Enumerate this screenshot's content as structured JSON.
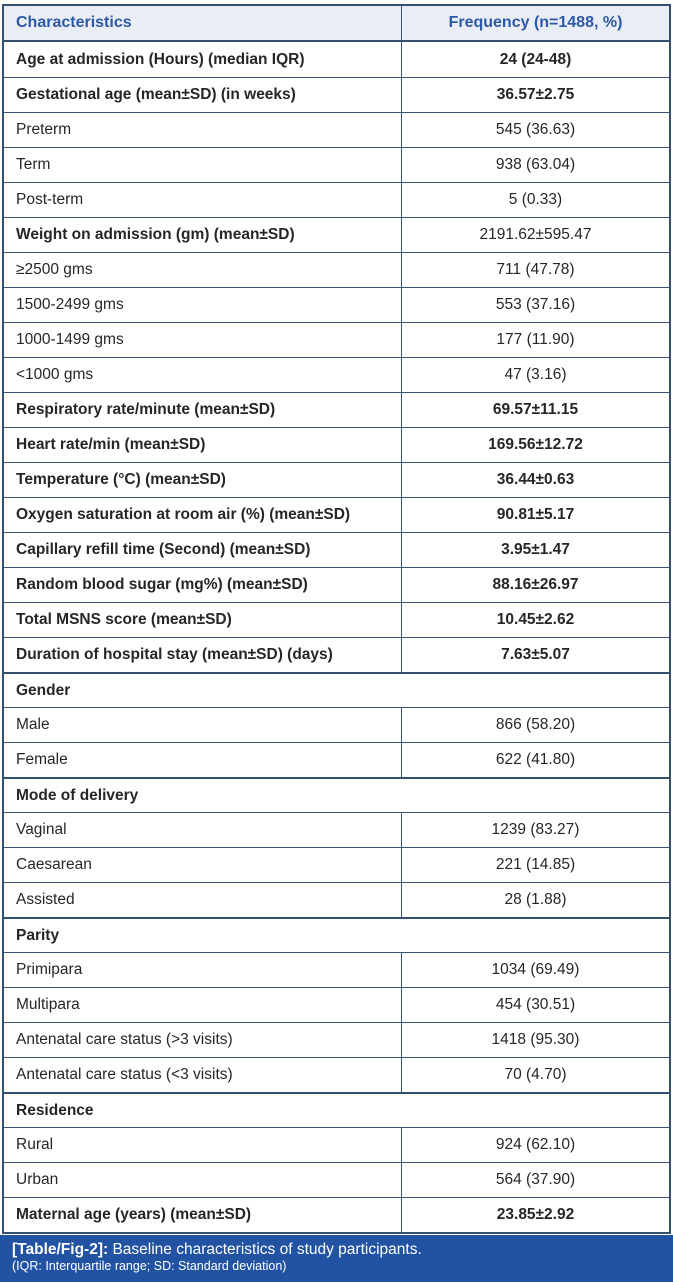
{
  "colors": {
    "border": "#35506f",
    "header_bg": "#e9edf4",
    "header_text": "#2e59a7",
    "caption_bg": "#2253a3",
    "caption_text": "#ffffff",
    "body_text": "#262626"
  },
  "table": {
    "columns": [
      "Characteristics",
      "Frequency (n=1488, %)"
    ],
    "rows": [
      {
        "label": "Age at admission (Hours) (median IQR)",
        "value": "24 (24-48)",
        "lb": true,
        "vb": true
      },
      {
        "label": "Gestational age (mean±SD) (in weeks)",
        "value": "36.57±2.75",
        "lb": true,
        "vb": true
      },
      {
        "label": "Preterm",
        "value": "545 (36.63)",
        "lb": false,
        "vb": false
      },
      {
        "label": "Term",
        "value": "938 (63.04)",
        "lb": false,
        "vb": false
      },
      {
        "label": "Post-term",
        "value": "5 (0.33)",
        "lb": false,
        "vb": false
      },
      {
        "label": "Weight on admission (gm) (mean±SD)",
        "value": "2191.62±595.47",
        "lb": true,
        "vb": false
      },
      {
        "label": "≥2500 gms",
        "value": "711 (47.78)",
        "lb": false,
        "vb": false
      },
      {
        "label": "1500-2499 gms",
        "value": "553 (37.16)",
        "lb": false,
        "vb": false
      },
      {
        "label": "1000-1499 gms",
        "value": "177 (11.90)",
        "lb": false,
        "vb": false
      },
      {
        "label": "<1000 gms",
        "value": "47 (3.16)",
        "lb": false,
        "vb": false
      },
      {
        "label": "Respiratory rate/minute (mean±SD)",
        "value": "69.57±11.15",
        "lb": true,
        "vb": true
      },
      {
        "label": "Heart rate/min (mean±SD)",
        "value": "169.56±12.72",
        "lb": true,
        "vb": true
      },
      {
        "label": "Temperature (°C) (mean±SD)",
        "value": "36.44±0.63",
        "lb": true,
        "vb": true
      },
      {
        "label": "Oxygen saturation at room air (%) (mean±SD)",
        "value": "90.81±5.17",
        "lb": true,
        "vb": true
      },
      {
        "label": "Capillary refill time (Second) (mean±SD)",
        "value": "3.95±1.47",
        "lb": true,
        "vb": true
      },
      {
        "label": "Random blood sugar (mg%) (mean±SD)",
        "value": "88.16±26.97",
        "lb": true,
        "vb": true
      },
      {
        "label": "Total MSNS score (mean±SD)",
        "value": "10.45±2.62",
        "lb": true,
        "vb": true
      },
      {
        "label": "Duration of hospital stay (mean±SD) (days)",
        "value": "7.63±5.07",
        "lb": true,
        "vb": true
      },
      {
        "label": "Gender",
        "section": true
      },
      {
        "label": "Male",
        "value": "866 (58.20)",
        "lb": false,
        "vb": false
      },
      {
        "label": "Female",
        "value": "622 (41.80)",
        "lb": false,
        "vb": false
      },
      {
        "label": "Mode of delivery",
        "section": true
      },
      {
        "label": "Vaginal",
        "value": "1239 (83.27)",
        "lb": false,
        "vb": false
      },
      {
        "label": "Caesarean",
        "value": "221 (14.85)",
        "lb": false,
        "vb": false
      },
      {
        "label": "Assisted",
        "value": "28 (1.88)",
        "lb": false,
        "vb": false
      },
      {
        "label": "Parity",
        "section": true
      },
      {
        "label": "Primipara",
        "value": "1034 (69.49)",
        "lb": false,
        "vb": false
      },
      {
        "label": "Multipara",
        "value": "454 (30.51)",
        "lb": false,
        "vb": false
      },
      {
        "label": "Antenatal care status (>3 visits)",
        "value": "1418 (95.30)",
        "lb": false,
        "vb": false
      },
      {
        "label": "Antenatal care status (<3 visits)",
        "value": "70 (4.70)",
        "lb": false,
        "vb": false
      },
      {
        "label": "Residence",
        "section": true
      },
      {
        "label": "Rural",
        "value": "924 (62.10)",
        "lb": false,
        "vb": false
      },
      {
        "label": "Urban",
        "value": "564 (37.90)",
        "lb": false,
        "vb": false
      },
      {
        "label": "Maternal age (years) (mean±SD)",
        "value": "23.85±2.92",
        "lb": true,
        "vb": true
      }
    ]
  },
  "caption": {
    "tag": "[Table/Fig-2]:",
    "text": "Baseline characteristics of study participants.",
    "note": "(IQR: Interquartile range; SD: Standard deviation)"
  }
}
